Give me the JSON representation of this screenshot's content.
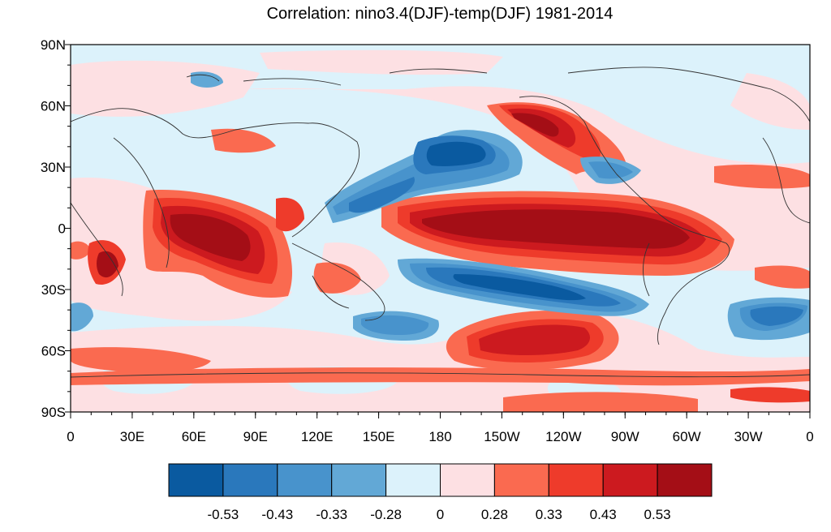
{
  "title": "Correlation: nino3.4(DJF)-temp(DJF) 1981-2014",
  "map": {
    "projection": "cylindrical-equidistant",
    "lon_range": [
      0,
      360
    ],
    "lat_range": [
      -90,
      90
    ],
    "coastlines": true,
    "lat_ticks": [
      "90N",
      "60N",
      "30N",
      "0",
      "30S",
      "60S",
      "90S"
    ],
    "lon_ticks": [
      "0",
      "30E",
      "60E",
      "90E",
      "120E",
      "150E",
      "180",
      "150W",
      "120W",
      "90W",
      "60W",
      "30W",
      "0"
    ]
  },
  "colorbar": {
    "colors": [
      "#0a5aa0",
      "#2a78bc",
      "#4893cc",
      "#62a8d6",
      "#dcf2fb",
      "#fde0e3",
      "#fa6a50",
      "#ee3b2b",
      "#cc1a1f",
      "#a40e16"
    ],
    "labels": [
      "-0.53",
      "-0.43",
      "-0.33",
      "-0.28",
      "0",
      "0.28",
      "0.33",
      "0.43",
      "0.53"
    ]
  }
}
